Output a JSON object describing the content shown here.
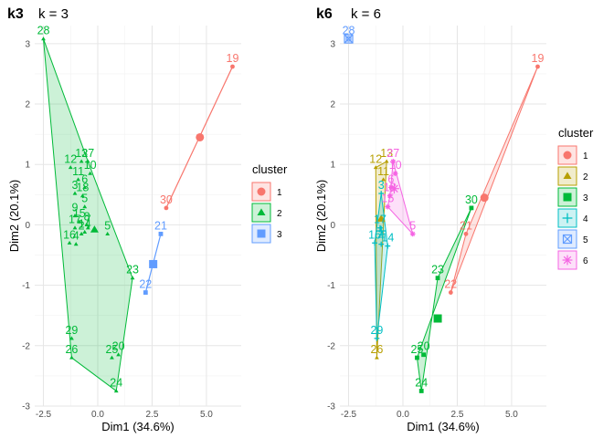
{
  "colors": {
    "c1": "#F8766D",
    "c2": "#B79F00",
    "c3": "#00BA38",
    "c4": "#00BFC4",
    "c5": "#619CFF",
    "c6": "#F564E3"
  },
  "chart_data": [
    {
      "type": "scatter",
      "tag": "k3",
      "title": "k = 3",
      "xlabel": "Dim1 (34.6%)",
      "ylabel": "Dim2 (20.1%)",
      "xlim": [
        -2.9,
        6.6
      ],
      "ylim": [
        -3.0,
        3.3
      ],
      "xticks": [
        "-2.5",
        "0.0",
        "2.5",
        "5.0"
      ],
      "xtick_values": [
        -2.5,
        0,
        2.5,
        5
      ],
      "yticks": [
        "-3",
        "-2",
        "-1",
        "0",
        "1",
        "2",
        "3"
      ],
      "ytick_values": [
        -3,
        -2,
        -1,
        0,
        1,
        2,
        3
      ],
      "legend": {
        "title": "cluster",
        "entries": [
          "1",
          "2",
          "3"
        ],
        "placement": "right"
      },
      "clusters": [
        {
          "name": "1",
          "color": "#F8766D",
          "shape": "circle",
          "points": [
            {
              "label": "19",
              "x": 6.2,
              "y": 2.62
            },
            {
              "label": "30",
              "x": 3.15,
              "y": 0.28
            }
          ],
          "hull": [
            [
              6.2,
              2.62
            ],
            [
              3.15,
              0.28
            ]
          ],
          "center": [
            4.7,
            1.45
          ]
        },
        {
          "name": "2",
          "color": "#00BA38",
          "shape": "triangle",
          "points": [
            {
              "label": "28",
              "x": -2.5,
              "y": 3.08
            },
            {
              "label": "12",
              "x": -1.25,
              "y": 0.95
            },
            {
              "label": "13",
              "x": -0.75,
              "y": 1.05
            },
            {
              "label": "27",
              "x": -0.45,
              "y": 1.05
            },
            {
              "label": "10",
              "x": -0.35,
              "y": 0.85
            },
            {
              "label": "11",
              "x": -0.9,
              "y": 0.75
            },
            {
              "label": "6",
              "x": -0.6,
              "y": 0.62
            },
            {
              "label": "3",
              "x": -1.05,
              "y": 0.52
            },
            {
              "label": "18",
              "x": -0.7,
              "y": 0.48
            },
            {
              "label": "5",
              "x": -0.6,
              "y": 0.3
            },
            {
              "label": "9",
              "x": -1.05,
              "y": 0.15
            },
            {
              "label": "15",
              "x": -0.85,
              "y": 0.05
            },
            {
              "label": "17",
              "x": -1.05,
              "y": -0.05
            },
            {
              "label": "2",
              "x": -0.75,
              "y": -0.15
            },
            {
              "label": "16",
              "x": -1.3,
              "y": -0.3
            },
            {
              "label": "4",
              "x": -1.0,
              "y": -0.32
            },
            {
              "label": "14",
              "x": -0.6,
              "y": -0.12
            },
            {
              "label": "7",
              "x": -0.45,
              "y": -0.05
            },
            {
              "label": "8",
              "x": -0.5,
              "y": 0.0
            },
            {
              "label": "5",
              "x": 0.45,
              "y": -0.15
            },
            {
              "label": "23",
              "x": 1.6,
              "y": -0.88
            },
            {
              "label": "29",
              "x": -1.2,
              "y": -1.88
            },
            {
              "label": "26",
              "x": -1.2,
              "y": -2.2
            },
            {
              "label": "25",
              "x": 0.65,
              "y": -2.2
            },
            {
              "label": "20",
              "x": 0.95,
              "y": -2.15
            },
            {
              "label": "24",
              "x": 0.85,
              "y": -2.75
            }
          ],
          "hull": [
            [
              -2.5,
              3.08
            ],
            [
              -0.45,
              1.05
            ],
            [
              1.6,
              -0.88
            ],
            [
              0.85,
              -2.75
            ],
            [
              -1.2,
              -2.2
            ]
          ],
          "center": [
            -0.15,
            -0.08
          ]
        },
        {
          "name": "3",
          "color": "#619CFF",
          "shape": "square",
          "points": [
            {
              "label": "21",
              "x": 2.9,
              "y": -0.15
            },
            {
              "label": "22",
              "x": 2.2,
              "y": -1.12
            }
          ],
          "hull": [
            [
              2.9,
              -0.15
            ],
            [
              2.2,
              -1.12
            ]
          ],
          "center": [
            2.55,
            -0.65
          ]
        }
      ]
    },
    {
      "type": "scatter",
      "tag": "k6",
      "title": "k = 6",
      "xlabel": "Dim1 (34.6%)",
      "ylabel": "Dim2 (20.1%)",
      "xlim": [
        -2.9,
        6.6
      ],
      "ylim": [
        -3.0,
        3.3
      ],
      "xticks": [
        "-2.5",
        "0.0",
        "2.5",
        "5.0"
      ],
      "xtick_values": [
        -2.5,
        0,
        2.5,
        5
      ],
      "yticks": [
        "-3",
        "-2",
        "-1",
        "0",
        "1",
        "2",
        "3"
      ],
      "ytick_values": [
        -3,
        -2,
        -1,
        0,
        1,
        2,
        3
      ],
      "legend": {
        "title": "cluster",
        "entries": [
          "1",
          "2",
          "3",
          "4",
          "5",
          "6"
        ],
        "placement": "right"
      },
      "clusters": [
        {
          "name": "1",
          "color": "#F8766D",
          "shape": "circle",
          "points": [
            {
              "label": "19",
              "x": 6.2,
              "y": 2.62
            },
            {
              "label": "21",
              "x": 2.9,
              "y": -0.15
            },
            {
              "label": "22",
              "x": 2.2,
              "y": -1.12
            }
          ],
          "hull": [
            [
              6.2,
              2.62
            ],
            [
              2.9,
              -0.15
            ],
            [
              2.2,
              -1.12
            ]
          ],
          "center": [
            3.75,
            0.45
          ]
        },
        {
          "name": "2",
          "color": "#B79F00",
          "shape": "triangle",
          "points": [
            {
              "label": "12",
              "x": -1.25,
              "y": 0.95
            },
            {
              "label": "13",
              "x": -0.75,
              "y": 1.05
            },
            {
              "label": "11",
              "x": -0.9,
              "y": 0.75
            },
            {
              "label": "26",
              "x": -1.2,
              "y": -2.2
            }
          ],
          "hull": [
            [
              -1.25,
              0.95
            ],
            [
              -0.75,
              1.05
            ],
            [
              -1.2,
              -2.2
            ]
          ],
          "center": [
            -1.0,
            0.1
          ]
        },
        {
          "name": "3",
          "color": "#00BA38",
          "shape": "square",
          "points": [
            {
              "label": "30",
              "x": 3.15,
              "y": 0.28
            },
            {
              "label": "23",
              "x": 1.6,
              "y": -0.88
            },
            {
              "label": "25",
              "x": 0.65,
              "y": -2.2
            },
            {
              "label": "20",
              "x": 0.95,
              "y": -2.15
            },
            {
              "label": "24",
              "x": 0.85,
              "y": -2.75
            }
          ],
          "hull": [
            [
              3.15,
              0.28
            ],
            [
              1.6,
              -0.88
            ],
            [
              0.85,
              -2.75
            ],
            [
              0.65,
              -2.2
            ]
          ],
          "center": [
            1.6,
            -1.55
          ]
        },
        {
          "name": "4",
          "color": "#00BFC4",
          "shape": "plus",
          "points": [
            {
              "label": "3",
              "x": -1.0,
              "y": 0.52
            },
            {
              "label": "17",
              "x": -1.05,
              "y": -0.05
            },
            {
              "label": "16",
              "x": -1.3,
              "y": -0.3
            },
            {
              "label": "4",
              "x": -1.0,
              "y": -0.32
            },
            {
              "label": "14",
              "x": -0.7,
              "y": -0.35
            },
            {
              "label": "29",
              "x": -1.2,
              "y": -1.88
            }
          ],
          "hull": [
            [
              -1.0,
              0.52
            ],
            [
              -0.7,
              -0.35
            ],
            [
              -1.2,
              -1.88
            ],
            [
              -1.3,
              -0.3
            ]
          ],
          "center": [
            -1.0,
            -0.1
          ]
        },
        {
          "name": "5",
          "color": "#619CFF",
          "shape": "square-x",
          "points": [
            {
              "label": "28",
              "x": -2.5,
              "y": 3.08
            }
          ],
          "hull": [],
          "center": [
            -2.5,
            3.08
          ]
        },
        {
          "name": "6",
          "color": "#F564E3",
          "shape": "asterisk",
          "points": [
            {
              "label": "27",
              "x": -0.45,
              "y": 1.05
            },
            {
              "label": "10",
              "x": -0.35,
              "y": 0.85
            },
            {
              "label": "18",
              "x": -0.6,
              "y": 0.48
            },
            {
              "label": "6",
              "x": -0.55,
              "y": 0.62
            },
            {
              "label": "15",
              "x": -0.7,
              "y": 0.3
            },
            {
              "label": "5",
              "x": 0.45,
              "y": -0.15
            }
          ],
          "hull": [
            [
              -0.45,
              1.05
            ],
            [
              0.45,
              -0.15
            ],
            [
              -0.7,
              0.3
            ],
            [
              -0.6,
              0.48
            ]
          ],
          "center": [
            -0.4,
            0.6
          ]
        }
      ]
    }
  ]
}
